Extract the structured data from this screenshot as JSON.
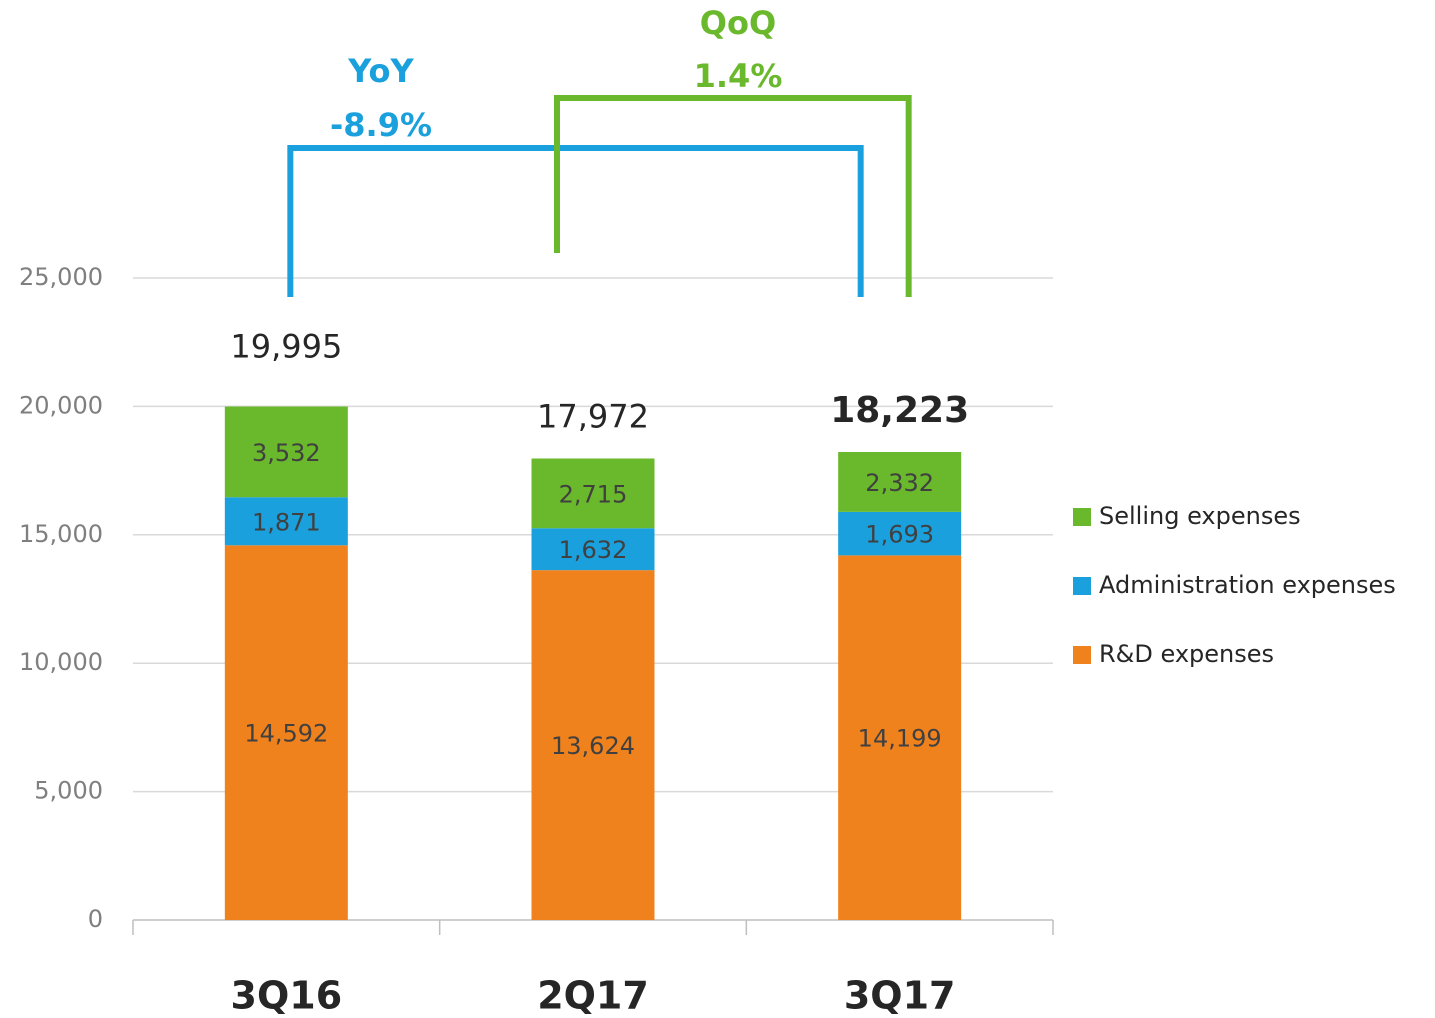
{
  "chart_data": {
    "type": "stacked_bar",
    "categories": [
      "3Q16",
      "2Q17",
      "3Q17"
    ],
    "series": [
      {
        "name": "R&D expenses",
        "color": "#f0821e",
        "values": [
          14592,
          13624,
          14199
        ],
        "value_labels": [
          "14,592",
          "13,624",
          "14,199"
        ]
      },
      {
        "name": "Administration expenses",
        "color": "#1aa0dc",
        "values": [
          1871,
          1632,
          1693
        ],
        "value_labels": [
          "1,871",
          "1,632",
          "1,693"
        ]
      },
      {
        "name": "Selling expenses",
        "color": "#6ab82c",
        "values": [
          3532,
          2715,
          2332
        ],
        "value_labels": [
          "3,532",
          "2,715",
          "2,332"
        ]
      }
    ],
    "totals": [
      19995,
      17972,
      18223
    ],
    "total_labels": [
      "19,995",
      "17,972",
      "18,223"
    ],
    "annotations": [
      {
        "label": "YoY",
        "value": -8.9,
        "value_label": "-8.9%",
        "color": "#1aa0dc"
      },
      {
        "label": "QoQ",
        "value": 1.4,
        "value_label": "1.4%",
        "color": "#6ab82c"
      }
    ],
    "ylim": [
      0,
      25000
    ],
    "yticks": [
      0,
      {
        "value": 5000,
        "label": "5,000"
      },
      {
        "value": 10000,
        "label": "10,000"
      },
      {
        "value": 15000,
        "label": "15,000"
      },
      {
        "value": 20000,
        "label": "20,000"
      },
      {
        "value": 25000,
        "label": "25,000"
      }
    ],
    "grid": true,
    "legend": "right"
  }
}
